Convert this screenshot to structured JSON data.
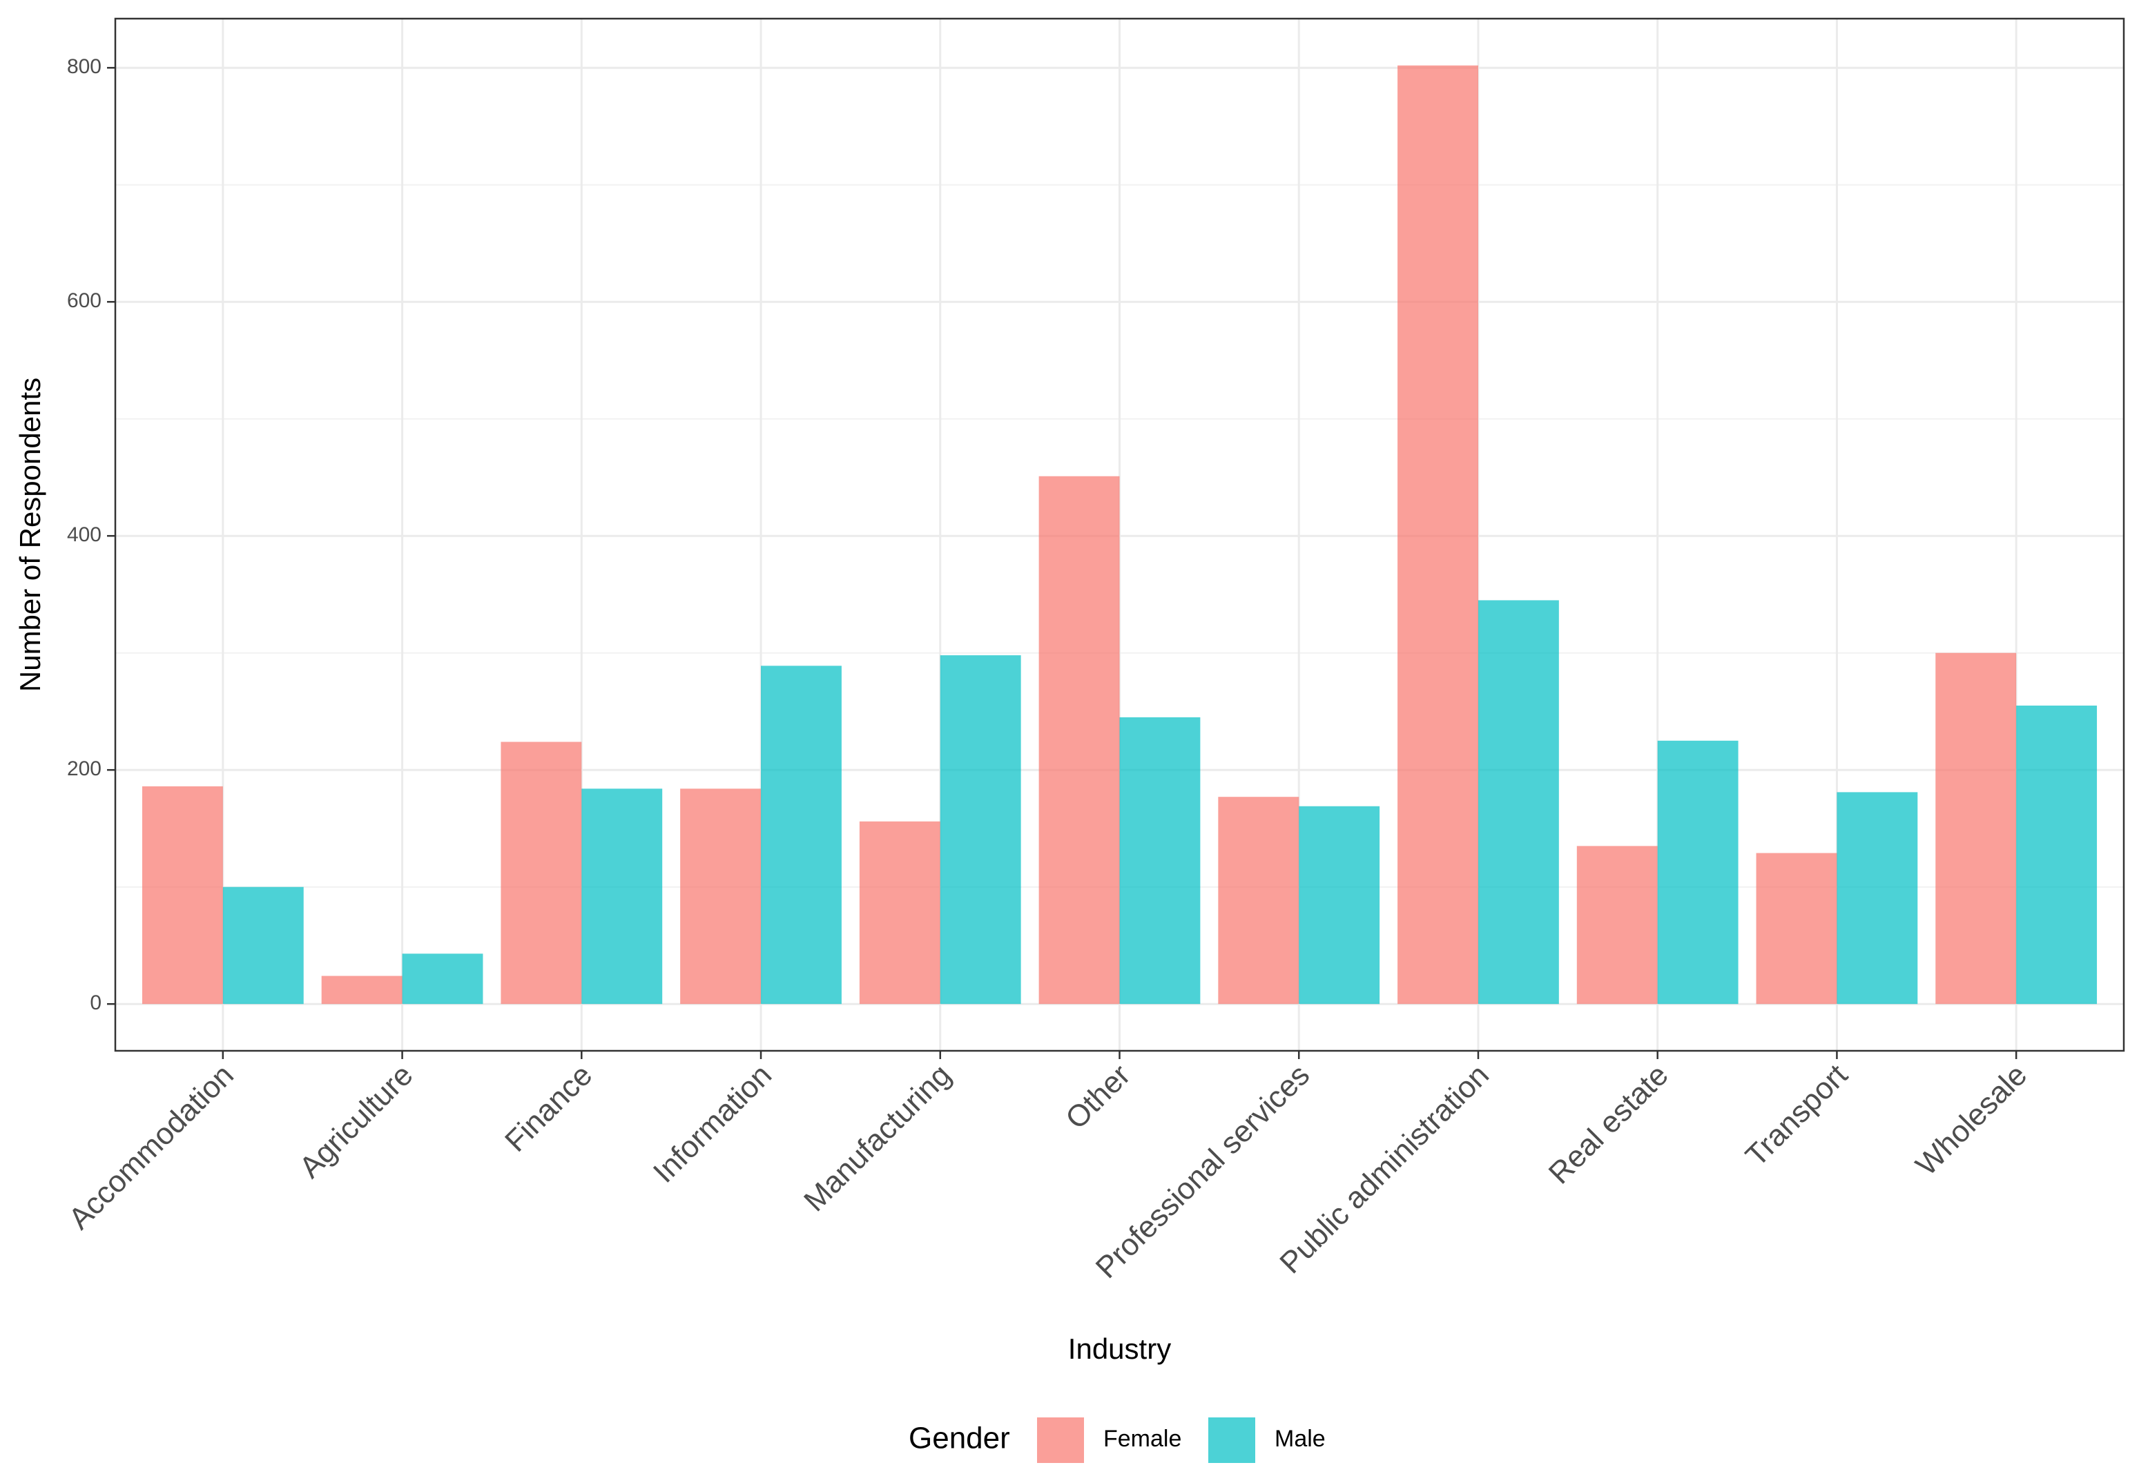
{
  "chart_data": {
    "type": "bar",
    "title": "",
    "xlabel": "Industry",
    "ylabel": "Number of Respondents",
    "ylim": [
      -40,
      842
    ],
    "yticks": [
      0,
      200,
      400,
      600,
      800
    ],
    "grid": true,
    "legend_position": "bottom",
    "legend_title": "Gender",
    "categories": [
      "Accommodation",
      "Agriculture",
      "Finance",
      "Information",
      "Manufacturing",
      "Other",
      "Professional services",
      "Public administration",
      "Real estate",
      "Transport",
      "Wholesale"
    ],
    "series": [
      {
        "name": "Female",
        "color": "#F8766D",
        "values": [
          186,
          24,
          224,
          184,
          156,
          451,
          177,
          802,
          135,
          129,
          300
        ]
      },
      {
        "name": "Male",
        "color": "#00BFC4",
        "values": [
          100,
          43,
          184,
          289,
          298,
          245,
          169,
          345,
          225,
          181,
          255
        ]
      }
    ]
  }
}
